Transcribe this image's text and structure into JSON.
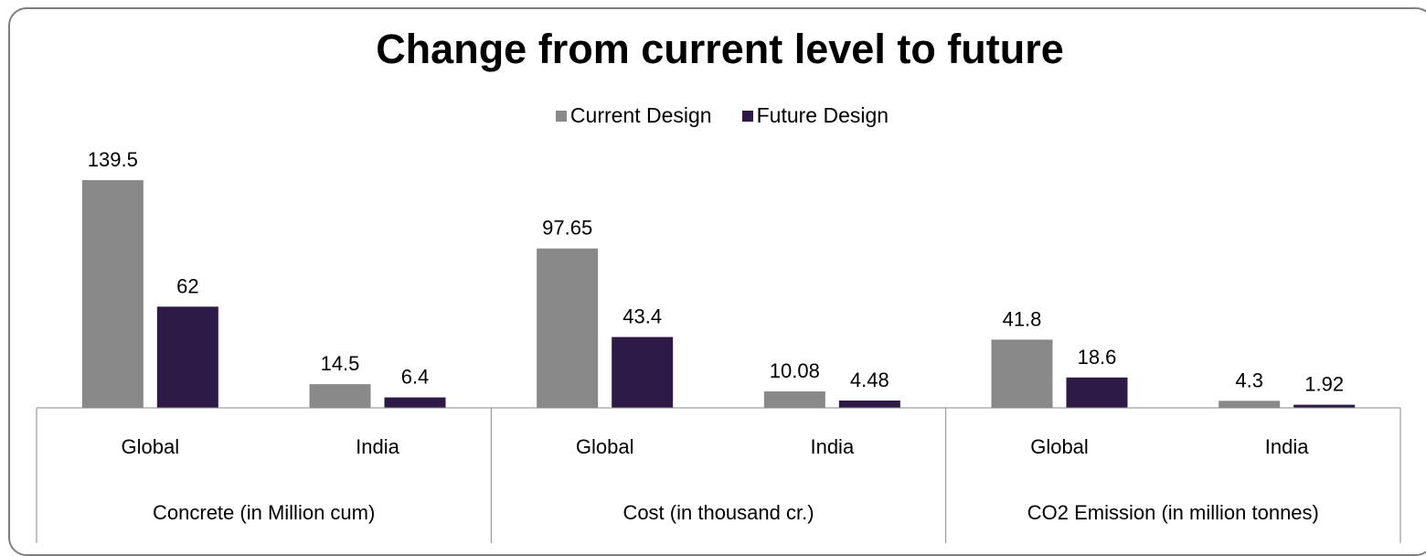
{
  "chart_data": {
    "type": "bar",
    "title": "Change from current level to future",
    "groups": [
      {
        "label": "Concrete (in Million cum)",
        "categories": [
          "Global",
          "India"
        ]
      },
      {
        "label": "Cost (in thousand cr.)",
        "categories": [
          "Global",
          "India"
        ]
      },
      {
        "label": "CO2 Emission (in million tonnes)",
        "categories": [
          "Global",
          "India"
        ]
      }
    ],
    "categories": [
      "Global",
      "India",
      "Global",
      "India",
      "Global",
      "India"
    ],
    "series": [
      {
        "name": "Current Design",
        "color": "#898989",
        "values": [
          139.5,
          14.5,
          97.65,
          10.08,
          41.8,
          4.3
        ],
        "labels": [
          "139.5",
          "14.5",
          "97.65",
          "10.08",
          "41.8",
          "4.3"
        ]
      },
      {
        "name": "Future Design",
        "color": "#2e1a47",
        "values": [
          62,
          6.4,
          43.4,
          4.48,
          18.6,
          1.92
        ],
        "labels": [
          "62",
          "6.4",
          "43.4",
          "4.48",
          "18.6",
          "1.92"
        ]
      }
    ],
    "ylim": [
      0,
      140
    ],
    "legend": "top-center",
    "grid": false
  }
}
